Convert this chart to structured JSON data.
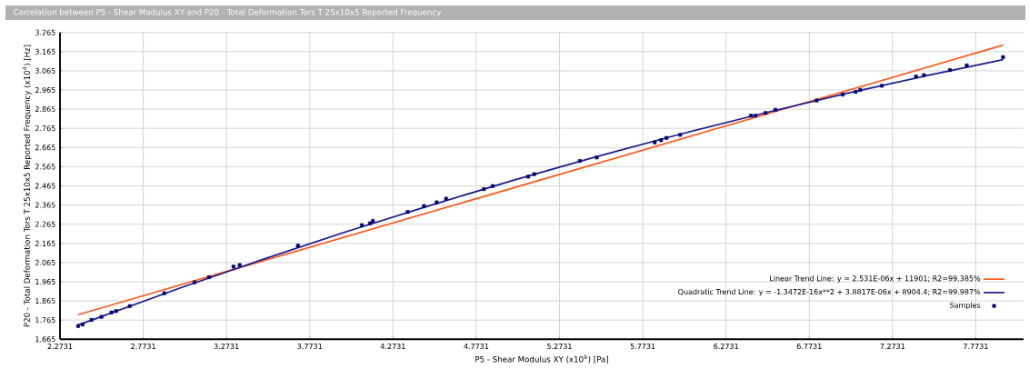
{
  "chart_data": {
    "type": "scatter",
    "title": "Correlation between P5 - Shear Modulus XY and P20 - Total Deformation Tors T 25x10x5 Reported Frequency",
    "xlabel": "P5 - Shear Modulus XY  (x10$^{9}$)  [Pa]",
    "ylabel": "P20 - Total Deformation Tors T 25x10x5 Reported Frequency  (x10$^{4}$)  [Hz]",
    "xlim": [
      2.2731,
      8.06
    ],
    "ylim": [
      1.665,
      3.265
    ],
    "xticks": [
      2.2731,
      2.7731,
      3.2731,
      3.7731,
      4.2731,
      4.7731,
      5.2731,
      5.7731,
      6.2731,
      6.7731,
      7.2731,
      7.7731
    ],
    "yticks": [
      1.665,
      1.765,
      1.865,
      1.965,
      2.065,
      2.165,
      2.265,
      2.365,
      2.465,
      2.565,
      2.665,
      2.765,
      2.865,
      2.965,
      3.065,
      3.165,
      3.265
    ],
    "grid": true,
    "legend": "bottom right",
    "series": [
      {
        "name": "Linear Trend Line: y = 2.531E-06x + 11901; R2=99.385%",
        "type": "line",
        "color": "#ff5a1e",
        "x": [
          2.382,
          7.937
        ],
        "values": [
          1.793,
          3.199
        ]
      },
      {
        "name": "Quadratic Trend Line: y = -1.3472E-16x**2 + 3.8817E-06x + 8904.4; R2=99.987%",
        "type": "line",
        "color": "#1c1c8c",
        "x": [
          2.382,
          3,
          3.5,
          4,
          4.5,
          5,
          5.5,
          6,
          6.5,
          7,
          7.5,
          7.937
        ],
        "values": [
          1.739,
          1.934,
          2.084,
          2.228,
          2.364,
          2.495,
          2.618,
          2.735,
          2.844,
          2.948,
          3.044,
          3.123
        ]
      },
      {
        "name": "Samples",
        "marker": "square",
        "color": "#000070",
        "x": [
          2.382,
          2.409,
          2.462,
          2.522,
          2.582,
          2.61,
          2.692,
          2.899,
          3.081,
          3.168,
          3.315,
          3.352,
          3.702,
          4.086,
          4.135,
          4.152,
          4.361,
          4.459,
          4.535,
          4.592,
          4.819,
          4.872,
          5.085,
          5.121,
          5.395,
          5.497,
          5.845,
          5.883,
          5.916,
          5.998,
          6.423,
          6.45,
          6.51,
          6.57,
          6.817,
          6.974,
          7.052,
          7.079,
          7.209,
          7.414,
          7.462,
          7.618,
          7.719,
          7.937
        ],
        "values": [
          1.734,
          1.742,
          1.766,
          1.782,
          1.805,
          1.812,
          1.838,
          1.905,
          1.962,
          1.989,
          2.044,
          2.052,
          2.153,
          2.26,
          2.27,
          2.282,
          2.329,
          2.36,
          2.379,
          2.398,
          2.448,
          2.464,
          2.513,
          2.526,
          2.595,
          2.613,
          2.692,
          2.703,
          2.715,
          2.731,
          2.831,
          2.831,
          2.845,
          2.862,
          2.91,
          2.941,
          2.955,
          2.965,
          2.987,
          3.035,
          3.042,
          3.069,
          3.093,
          3.136
        ]
      }
    ]
  }
}
